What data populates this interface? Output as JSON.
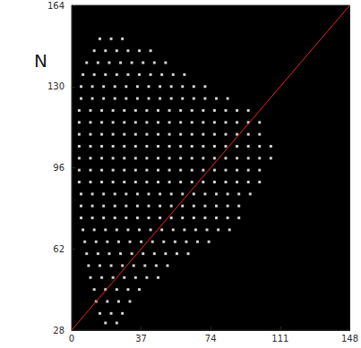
{
  "chart_data": {
    "type": "scatter",
    "ylabel": "N",
    "color": "#ffffff",
    "marker": "square",
    "xlim": [
      0,
      148
    ],
    "xticks": [
      0,
      37,
      74,
      111,
      148
    ],
    "ylim": [
      28,
      164
    ],
    "yticks": [
      28,
      62,
      96,
      130,
      164
    ],
    "grid": false,
    "points": [
      [
        15,
        150
      ],
      [
        21,
        150
      ],
      [
        27,
        150
      ],
      [
        12,
        145
      ],
      [
        18,
        145
      ],
      [
        24,
        145
      ],
      [
        30,
        145
      ],
      [
        36,
        145
      ],
      [
        42,
        145
      ],
      [
        8,
        140
      ],
      [
        14,
        140
      ],
      [
        20,
        140
      ],
      [
        26,
        140
      ],
      [
        32,
        140
      ],
      [
        38,
        140
      ],
      [
        44,
        140
      ],
      [
        50,
        140
      ],
      [
        6,
        135
      ],
      [
        12,
        135
      ],
      [
        18,
        135
      ],
      [
        24,
        135
      ],
      [
        30,
        135
      ],
      [
        36,
        135
      ],
      [
        42,
        135
      ],
      [
        48,
        135
      ],
      [
        54,
        135
      ],
      [
        60,
        135
      ],
      [
        5,
        130
      ],
      [
        11,
        130
      ],
      [
        17,
        130
      ],
      [
        23,
        130
      ],
      [
        29,
        130
      ],
      [
        35,
        130
      ],
      [
        41,
        130
      ],
      [
        47,
        130
      ],
      [
        53,
        130
      ],
      [
        59,
        130
      ],
      [
        65,
        130
      ],
      [
        71,
        130
      ],
      [
        5,
        125
      ],
      [
        11,
        125
      ],
      [
        17,
        125
      ],
      [
        23,
        125
      ],
      [
        29,
        125
      ],
      [
        35,
        125
      ],
      [
        41,
        125
      ],
      [
        47,
        125
      ],
      [
        53,
        125
      ],
      [
        59,
        125
      ],
      [
        65,
        125
      ],
      [
        71,
        125
      ],
      [
        77,
        125
      ],
      [
        83,
        125
      ],
      [
        4,
        120
      ],
      [
        10,
        120
      ],
      [
        16,
        120
      ],
      [
        22,
        120
      ],
      [
        28,
        120
      ],
      [
        34,
        120
      ],
      [
        40,
        120
      ],
      [
        46,
        120
      ],
      [
        52,
        120
      ],
      [
        58,
        120
      ],
      [
        64,
        120
      ],
      [
        70,
        120
      ],
      [
        76,
        120
      ],
      [
        82,
        120
      ],
      [
        88,
        120
      ],
      [
        94,
        120
      ],
      [
        4,
        115
      ],
      [
        10,
        115
      ],
      [
        16,
        115
      ],
      [
        22,
        115
      ],
      [
        28,
        115
      ],
      [
        34,
        115
      ],
      [
        40,
        115
      ],
      [
        46,
        115
      ],
      [
        52,
        115
      ],
      [
        58,
        115
      ],
      [
        64,
        115
      ],
      [
        70,
        115
      ],
      [
        76,
        115
      ],
      [
        82,
        115
      ],
      [
        88,
        115
      ],
      [
        94,
        115
      ],
      [
        100,
        115
      ],
      [
        4,
        110
      ],
      [
        10,
        110
      ],
      [
        16,
        110
      ],
      [
        22,
        110
      ],
      [
        28,
        110
      ],
      [
        34,
        110
      ],
      [
        40,
        110
      ],
      [
        46,
        110
      ],
      [
        52,
        110
      ],
      [
        58,
        110
      ],
      [
        64,
        110
      ],
      [
        70,
        110
      ],
      [
        76,
        110
      ],
      [
        82,
        110
      ],
      [
        88,
        110
      ],
      [
        94,
        110
      ],
      [
        100,
        110
      ],
      [
        4,
        105
      ],
      [
        10,
        105
      ],
      [
        16,
        105
      ],
      [
        22,
        105
      ],
      [
        28,
        105
      ],
      [
        34,
        105
      ],
      [
        40,
        105
      ],
      [
        46,
        105
      ],
      [
        52,
        105
      ],
      [
        58,
        105
      ],
      [
        64,
        105
      ],
      [
        70,
        105
      ],
      [
        76,
        105
      ],
      [
        82,
        105
      ],
      [
        88,
        105
      ],
      [
        94,
        105
      ],
      [
        100,
        105
      ],
      [
        106,
        105
      ],
      [
        4,
        100
      ],
      [
        10,
        100
      ],
      [
        16,
        100
      ],
      [
        22,
        100
      ],
      [
        28,
        100
      ],
      [
        34,
        100
      ],
      [
        40,
        100
      ],
      [
        46,
        100
      ],
      [
        52,
        100
      ],
      [
        58,
        100
      ],
      [
        64,
        100
      ],
      [
        70,
        100
      ],
      [
        76,
        100
      ],
      [
        82,
        100
      ],
      [
        88,
        100
      ],
      [
        94,
        100
      ],
      [
        100,
        100
      ],
      [
        106,
        100
      ],
      [
        4,
        95
      ],
      [
        10,
        95
      ],
      [
        16,
        95
      ],
      [
        22,
        95
      ],
      [
        28,
        95
      ],
      [
        34,
        95
      ],
      [
        40,
        95
      ],
      [
        46,
        95
      ],
      [
        52,
        95
      ],
      [
        58,
        95
      ],
      [
        64,
        95
      ],
      [
        70,
        95
      ],
      [
        76,
        95
      ],
      [
        82,
        95
      ],
      [
        88,
        95
      ],
      [
        94,
        95
      ],
      [
        100,
        95
      ],
      [
        4,
        90
      ],
      [
        10,
        90
      ],
      [
        16,
        90
      ],
      [
        22,
        90
      ],
      [
        28,
        90
      ],
      [
        34,
        90
      ],
      [
        40,
        90
      ],
      [
        46,
        90
      ],
      [
        52,
        90
      ],
      [
        58,
        90
      ],
      [
        64,
        90
      ],
      [
        70,
        90
      ],
      [
        76,
        90
      ],
      [
        82,
        90
      ],
      [
        88,
        90
      ],
      [
        94,
        90
      ],
      [
        100,
        90
      ],
      [
        5,
        85
      ],
      [
        11,
        85
      ],
      [
        17,
        85
      ],
      [
        23,
        85
      ],
      [
        29,
        85
      ],
      [
        35,
        85
      ],
      [
        41,
        85
      ],
      [
        47,
        85
      ],
      [
        53,
        85
      ],
      [
        59,
        85
      ],
      [
        65,
        85
      ],
      [
        71,
        85
      ],
      [
        77,
        85
      ],
      [
        83,
        85
      ],
      [
        89,
        85
      ],
      [
        95,
        85
      ],
      [
        5,
        80
      ],
      [
        11,
        80
      ],
      [
        17,
        80
      ],
      [
        23,
        80
      ],
      [
        29,
        80
      ],
      [
        35,
        80
      ],
      [
        41,
        80
      ],
      [
        47,
        80
      ],
      [
        53,
        80
      ],
      [
        59,
        80
      ],
      [
        65,
        80
      ],
      [
        71,
        80
      ],
      [
        77,
        80
      ],
      [
        83,
        80
      ],
      [
        89,
        80
      ],
      [
        5,
        75
      ],
      [
        11,
        75
      ],
      [
        17,
        75
      ],
      [
        23,
        75
      ],
      [
        29,
        75
      ],
      [
        35,
        75
      ],
      [
        41,
        75
      ],
      [
        47,
        75
      ],
      [
        53,
        75
      ],
      [
        59,
        75
      ],
      [
        65,
        75
      ],
      [
        71,
        75
      ],
      [
        77,
        75
      ],
      [
        83,
        75
      ],
      [
        89,
        75
      ],
      [
        6,
        70
      ],
      [
        12,
        70
      ],
      [
        18,
        70
      ],
      [
        24,
        70
      ],
      [
        30,
        70
      ],
      [
        36,
        70
      ],
      [
        42,
        70
      ],
      [
        48,
        70
      ],
      [
        54,
        70
      ],
      [
        60,
        70
      ],
      [
        66,
        70
      ],
      [
        72,
        70
      ],
      [
        78,
        70
      ],
      [
        84,
        70
      ],
      [
        7,
        65
      ],
      [
        13,
        65
      ],
      [
        19,
        65
      ],
      [
        25,
        65
      ],
      [
        31,
        65
      ],
      [
        37,
        65
      ],
      [
        43,
        65
      ],
      [
        49,
        65
      ],
      [
        55,
        65
      ],
      [
        61,
        65
      ],
      [
        67,
        65
      ],
      [
        73,
        65
      ],
      [
        8,
        60
      ],
      [
        14,
        60
      ],
      [
        20,
        60
      ],
      [
        26,
        60
      ],
      [
        32,
        60
      ],
      [
        38,
        60
      ],
      [
        44,
        60
      ],
      [
        50,
        60
      ],
      [
        56,
        60
      ],
      [
        62,
        60
      ],
      [
        9,
        55
      ],
      [
        15,
        55
      ],
      [
        21,
        55
      ],
      [
        27,
        55
      ],
      [
        33,
        55
      ],
      [
        39,
        55
      ],
      [
        45,
        55
      ],
      [
        51,
        55
      ],
      [
        10,
        50
      ],
      [
        16,
        50
      ],
      [
        22,
        50
      ],
      [
        28,
        50
      ],
      [
        34,
        50
      ],
      [
        40,
        50
      ],
      [
        46,
        50
      ],
      [
        12,
        45
      ],
      [
        18,
        45
      ],
      [
        24,
        45
      ],
      [
        30,
        45
      ],
      [
        36,
        45
      ],
      [
        13,
        40
      ],
      [
        19,
        40
      ],
      [
        25,
        40
      ],
      [
        31,
        40
      ],
      [
        15,
        35
      ],
      [
        21,
        35
      ],
      [
        27,
        35
      ],
      [
        18,
        31
      ],
      [
        24,
        31
      ]
    ],
    "reference_line": {
      "x": [
        0,
        148
      ],
      "y": [
        28,
        164
      ],
      "color": "#e02020",
      "line_style": "solid"
    }
  }
}
